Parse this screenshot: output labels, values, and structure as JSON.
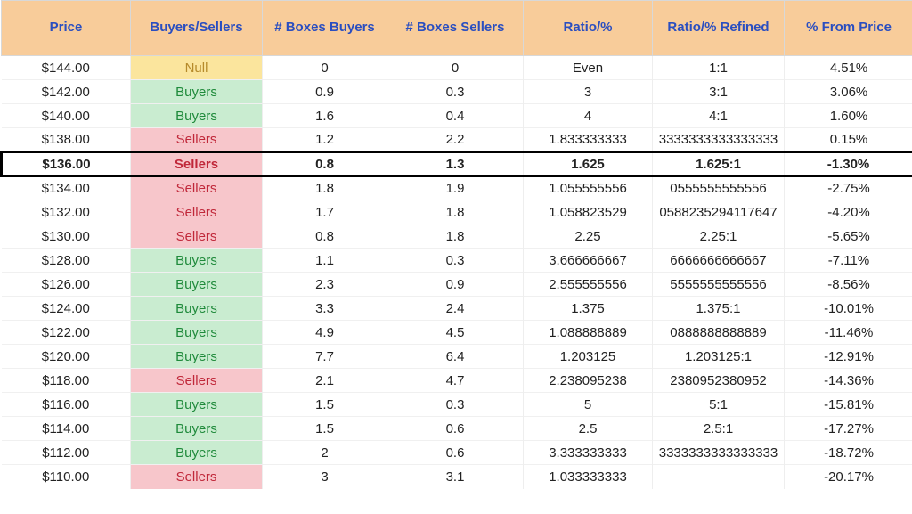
{
  "table": {
    "header_bg": "#f8cc9a",
    "header_color": "#2a4ec0",
    "grid_color": "#eeeeee",
    "columns": [
      "Price",
      "Buyers/Sellers",
      "# Boxes Buyers",
      "# Boxes Sellers",
      "Ratio/%",
      "Ratio/% Refined",
      "% From Price"
    ],
    "bs_styles": {
      "Buyers": {
        "bg": "#c9ecd0",
        "fg": "#1f8a3b"
      },
      "Sellers": {
        "bg": "#f7c6cb",
        "fg": "#c0283a"
      },
      "Null": {
        "bg": "#fbe59d",
        "fg": "#b68a2a"
      }
    },
    "highlight_index": 4,
    "rows": [
      {
        "price": "$144.00",
        "bs": "Null",
        "boxes_buy": "0",
        "boxes_sell": "0",
        "ratio": "Even",
        "ratio_ref": "1:1",
        "pct": "4.51%"
      },
      {
        "price": "$142.00",
        "bs": "Buyers",
        "boxes_buy": "0.9",
        "boxes_sell": "0.3",
        "ratio": "3",
        "ratio_ref": "3:1",
        "pct": "3.06%"
      },
      {
        "price": "$140.00",
        "bs": "Buyers",
        "boxes_buy": "1.6",
        "boxes_sell": "0.4",
        "ratio": "4",
        "ratio_ref": "4:1",
        "pct": "1.60%"
      },
      {
        "price": "$138.00",
        "bs": "Sellers",
        "boxes_buy": "1.2",
        "boxes_sell": "2.2",
        "ratio": "1.833333333",
        "ratio_ref": "3333333333333333",
        "pct": "0.15%"
      },
      {
        "price": "$136.00",
        "bs": "Sellers",
        "boxes_buy": "0.8",
        "boxes_sell": "1.3",
        "ratio": "1.625",
        "ratio_ref": "1.625:1",
        "pct": "-1.30%"
      },
      {
        "price": "$134.00",
        "bs": "Sellers",
        "boxes_buy": "1.8",
        "boxes_sell": "1.9",
        "ratio": "1.055555556",
        "ratio_ref": "0555555555556",
        "pct": "-2.75%"
      },
      {
        "price": "$132.00",
        "bs": "Sellers",
        "boxes_buy": "1.7",
        "boxes_sell": "1.8",
        "ratio": "1.058823529",
        "ratio_ref": "0588235294117647",
        "pct": "-4.20%"
      },
      {
        "price": "$130.00",
        "bs": "Sellers",
        "boxes_buy": "0.8",
        "boxes_sell": "1.8",
        "ratio": "2.25",
        "ratio_ref": "2.25:1",
        "pct": "-5.65%"
      },
      {
        "price": "$128.00",
        "bs": "Buyers",
        "boxes_buy": "1.1",
        "boxes_sell": "0.3",
        "ratio": "3.666666667",
        "ratio_ref": "6666666666667",
        "pct": "-7.11%"
      },
      {
        "price": "$126.00",
        "bs": "Buyers",
        "boxes_buy": "2.3",
        "boxes_sell": "0.9",
        "ratio": "2.555555556",
        "ratio_ref": "5555555555556",
        "pct": "-8.56%"
      },
      {
        "price": "$124.00",
        "bs": "Buyers",
        "boxes_buy": "3.3",
        "boxes_sell": "2.4",
        "ratio": "1.375",
        "ratio_ref": "1.375:1",
        "pct": "-10.01%"
      },
      {
        "price": "$122.00",
        "bs": "Buyers",
        "boxes_buy": "4.9",
        "boxes_sell": "4.5",
        "ratio": "1.088888889",
        "ratio_ref": "0888888888889",
        "pct": "-11.46%"
      },
      {
        "price": "$120.00",
        "bs": "Buyers",
        "boxes_buy": "7.7",
        "boxes_sell": "6.4",
        "ratio": "1.203125",
        "ratio_ref": "1.203125:1",
        "pct": "-12.91%"
      },
      {
        "price": "$118.00",
        "bs": "Sellers",
        "boxes_buy": "2.1",
        "boxes_sell": "4.7",
        "ratio": "2.238095238",
        "ratio_ref": "2380952380952",
        "pct": "-14.36%"
      },
      {
        "price": "$116.00",
        "bs": "Buyers",
        "boxes_buy": "1.5",
        "boxes_sell": "0.3",
        "ratio": "5",
        "ratio_ref": "5:1",
        "pct": "-15.81%"
      },
      {
        "price": "$114.00",
        "bs": "Buyers",
        "boxes_buy": "1.5",
        "boxes_sell": "0.6",
        "ratio": "2.5",
        "ratio_ref": "2.5:1",
        "pct": "-17.27%"
      },
      {
        "price": "$112.00",
        "bs": "Buyers",
        "boxes_buy": "2",
        "boxes_sell": "0.6",
        "ratio": "3.333333333",
        "ratio_ref": "3333333333333333",
        "pct": "-18.72%"
      },
      {
        "price": "$110.00",
        "bs": "Sellers",
        "boxes_buy": "3",
        "boxes_sell": "3.1",
        "ratio": "1.033333333",
        "ratio_ref": "",
        "pct": "-20.17%"
      }
    ]
  }
}
